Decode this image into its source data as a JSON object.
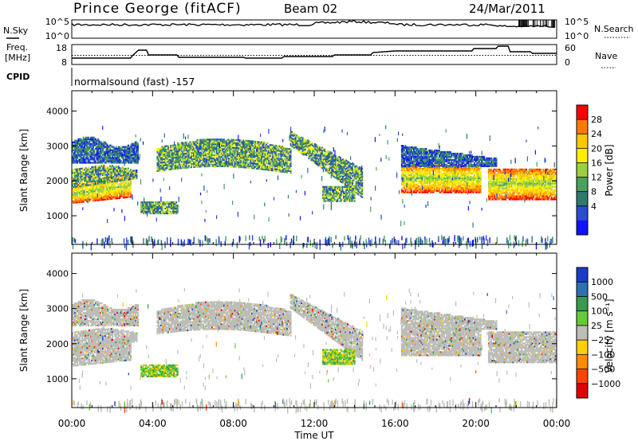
{
  "header": {
    "title": "Prince George (fitACF)",
    "beam": "Beam 02",
    "date": "24/Mar/2011"
  },
  "panels": {
    "nsky": {
      "left_label": "N.Sky",
      "left_ticks": [
        "10^5",
        "10^0"
      ],
      "right_label": "N.Search",
      "right_ticks": [
        "10^5",
        "10^0"
      ]
    },
    "freq": {
      "left_label_line1": "Freq.",
      "left_label_line2": "[MHz]",
      "left_ticks": [
        "18",
        "8"
      ],
      "right_label": "Nave",
      "right_ticks": [
        "60",
        "0"
      ]
    },
    "cpid": {
      "label": "CPID",
      "text": "normalsound (fast) -157"
    }
  },
  "chart_data": [
    {
      "type": "heatmap",
      "name": "power",
      "ylabel": "Slant Range [km]",
      "yticks": [
        1000,
        2000,
        3000,
        4000
      ],
      "ylim": [
        180,
        4580
      ],
      "xlim": [
        0,
        24
      ],
      "colorbar": {
        "label": "Power [dB]",
        "ticks": [
          "28",
          "24",
          "20",
          "16",
          "12",
          "8",
          "4"
        ],
        "colors": [
          "#ff0000",
          "#ff7a00",
          "#ffc800",
          "#ffee00",
          "#9ad040",
          "#4aa060",
          "#2f7a70",
          "#2a4cd0",
          "#1212ff"
        ]
      },
      "regions": [
        {
          "t": [
            0.4,
            2.6
          ],
          "r": [
            1400,
            2300
          ],
          "level": "high"
        },
        {
          "t": [
            0.3,
            3.4
          ],
          "r": [
            2500,
            3600
          ],
          "level": "mid"
        },
        {
          "t": [
            3.4,
            5.2
          ],
          "r": [
            1050,
            1400
          ],
          "level": "mid"
        },
        {
          "t": [
            5.0,
            10.8
          ],
          "r": [
            2200,
            3300
          ],
          "level": "mid"
        },
        {
          "t": [
            10.8,
            14.4
          ],
          "r": [
            1500,
            3400
          ],
          "level": "mid"
        },
        {
          "t": [
            17.0,
            20.0
          ],
          "r": [
            1600,
            2400
          ],
          "level": "high"
        },
        {
          "t": [
            20.7,
            23.9
          ],
          "r": [
            1400,
            2300
          ],
          "level": "high"
        }
      ]
    },
    {
      "type": "heatmap",
      "name": "velocity",
      "ylabel": "Slant Range [km]",
      "yticks": [
        1000,
        2000,
        3000,
        4000
      ],
      "ylim": [
        180,
        4580
      ],
      "xlim": [
        0,
        24
      ],
      "xticks": [
        "00:00",
        "04:00",
        "08:00",
        "12:00",
        "16:00",
        "20:00",
        "00:00"
      ],
      "xlabel": "Time UT",
      "colorbar": {
        "label": "Velocity [m s⁻¹]",
        "ticks": [
          "1000",
          "500",
          "100",
          "25",
          "−25",
          "−100",
          "−500",
          "−1000"
        ],
        "colors": [
          "#1a3cc8",
          "#2e6fb0",
          "#3a9a50",
          "#66cc33",
          "#bdbdb8",
          "#ffd000",
          "#ff8c00",
          "#ff4400",
          "#e00000"
        ]
      }
    }
  ],
  "colors": {
    "ground_scatter": "#bdbdb8",
    "axis": "#000000"
  }
}
